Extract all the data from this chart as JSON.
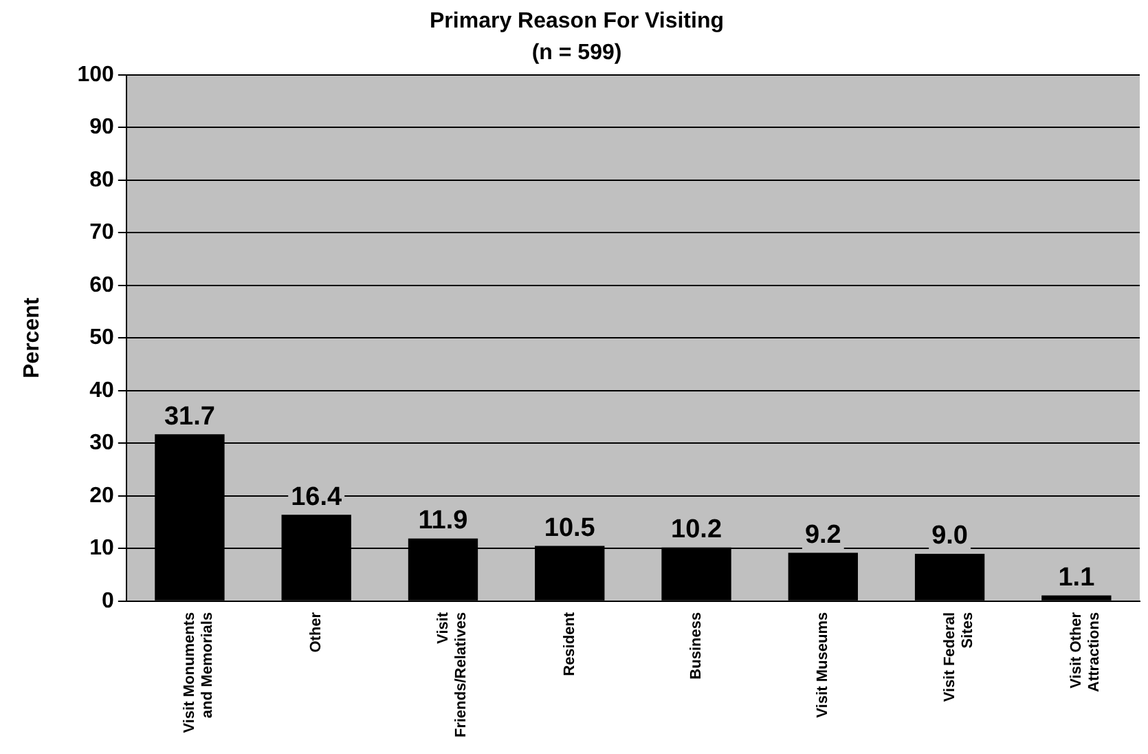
{
  "chart_data": {
    "type": "bar",
    "title": "Primary Reason For Visiting",
    "subtitle": "(n = 599)",
    "ylabel": "Percent",
    "categories": [
      "Visit Monuments and Memorials",
      "Other",
      "Visit Friends/Relatives",
      "Resident",
      "Business",
      "Visit Museums",
      "Visit Federal Sites",
      "Visit Other Attractions"
    ],
    "values": [
      31.7,
      16.4,
      11.9,
      10.5,
      10.2,
      9.2,
      9.0,
      1.1
    ],
    "color": "#000000",
    "value_labels": [
      "31.7",
      "16.4",
      "11.9",
      "10.5",
      "10.2",
      "9.2",
      "9.0",
      "1.1"
    ],
    "ylim": [
      0,
      100
    ],
    "yticks": [
      0,
      10,
      20,
      30,
      40,
      50,
      60,
      70,
      80,
      90,
      100
    ],
    "grid": "y",
    "legend": false
  }
}
